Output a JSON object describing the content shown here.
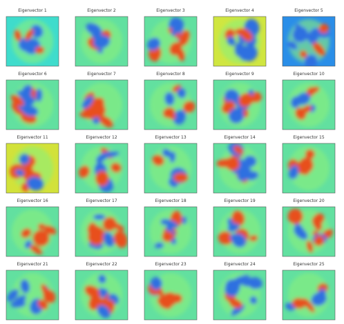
{
  "panels": [
    {
      "title": "Eigenvector 1"
    },
    {
      "title": "Eigenvector 2"
    },
    {
      "title": "Eigenvector 3"
    },
    {
      "title": "Eigenvector 4"
    },
    {
      "title": "Eigenvector 5"
    },
    {
      "title": "Eigenvector 6"
    },
    {
      "title": "Eigenvector 7"
    },
    {
      "title": "Eigenvector 8"
    },
    {
      "title": "Eigenvector 9"
    },
    {
      "title": "Eigenvector 10"
    },
    {
      "title": "Eigenvector 11"
    },
    {
      "title": "Eigenvector 12"
    },
    {
      "title": "Eigenvector 13"
    },
    {
      "title": "Eigenvector 14"
    },
    {
      "title": "Eigenvector 15"
    },
    {
      "title": "Eigenvector 16"
    },
    {
      "title": "Eigenvector 17"
    },
    {
      "title": "Eigenvector 18"
    },
    {
      "title": "Eigenvector 19"
    },
    {
      "title": "Eigenvector 20"
    },
    {
      "title": "Eigenvector 21"
    },
    {
      "title": "Eigenvector 22"
    },
    {
      "title": "Eigenvector 23"
    },
    {
      "title": "Eigenvector 24"
    },
    {
      "title": "Eigenvector 25"
    }
  ]
}
